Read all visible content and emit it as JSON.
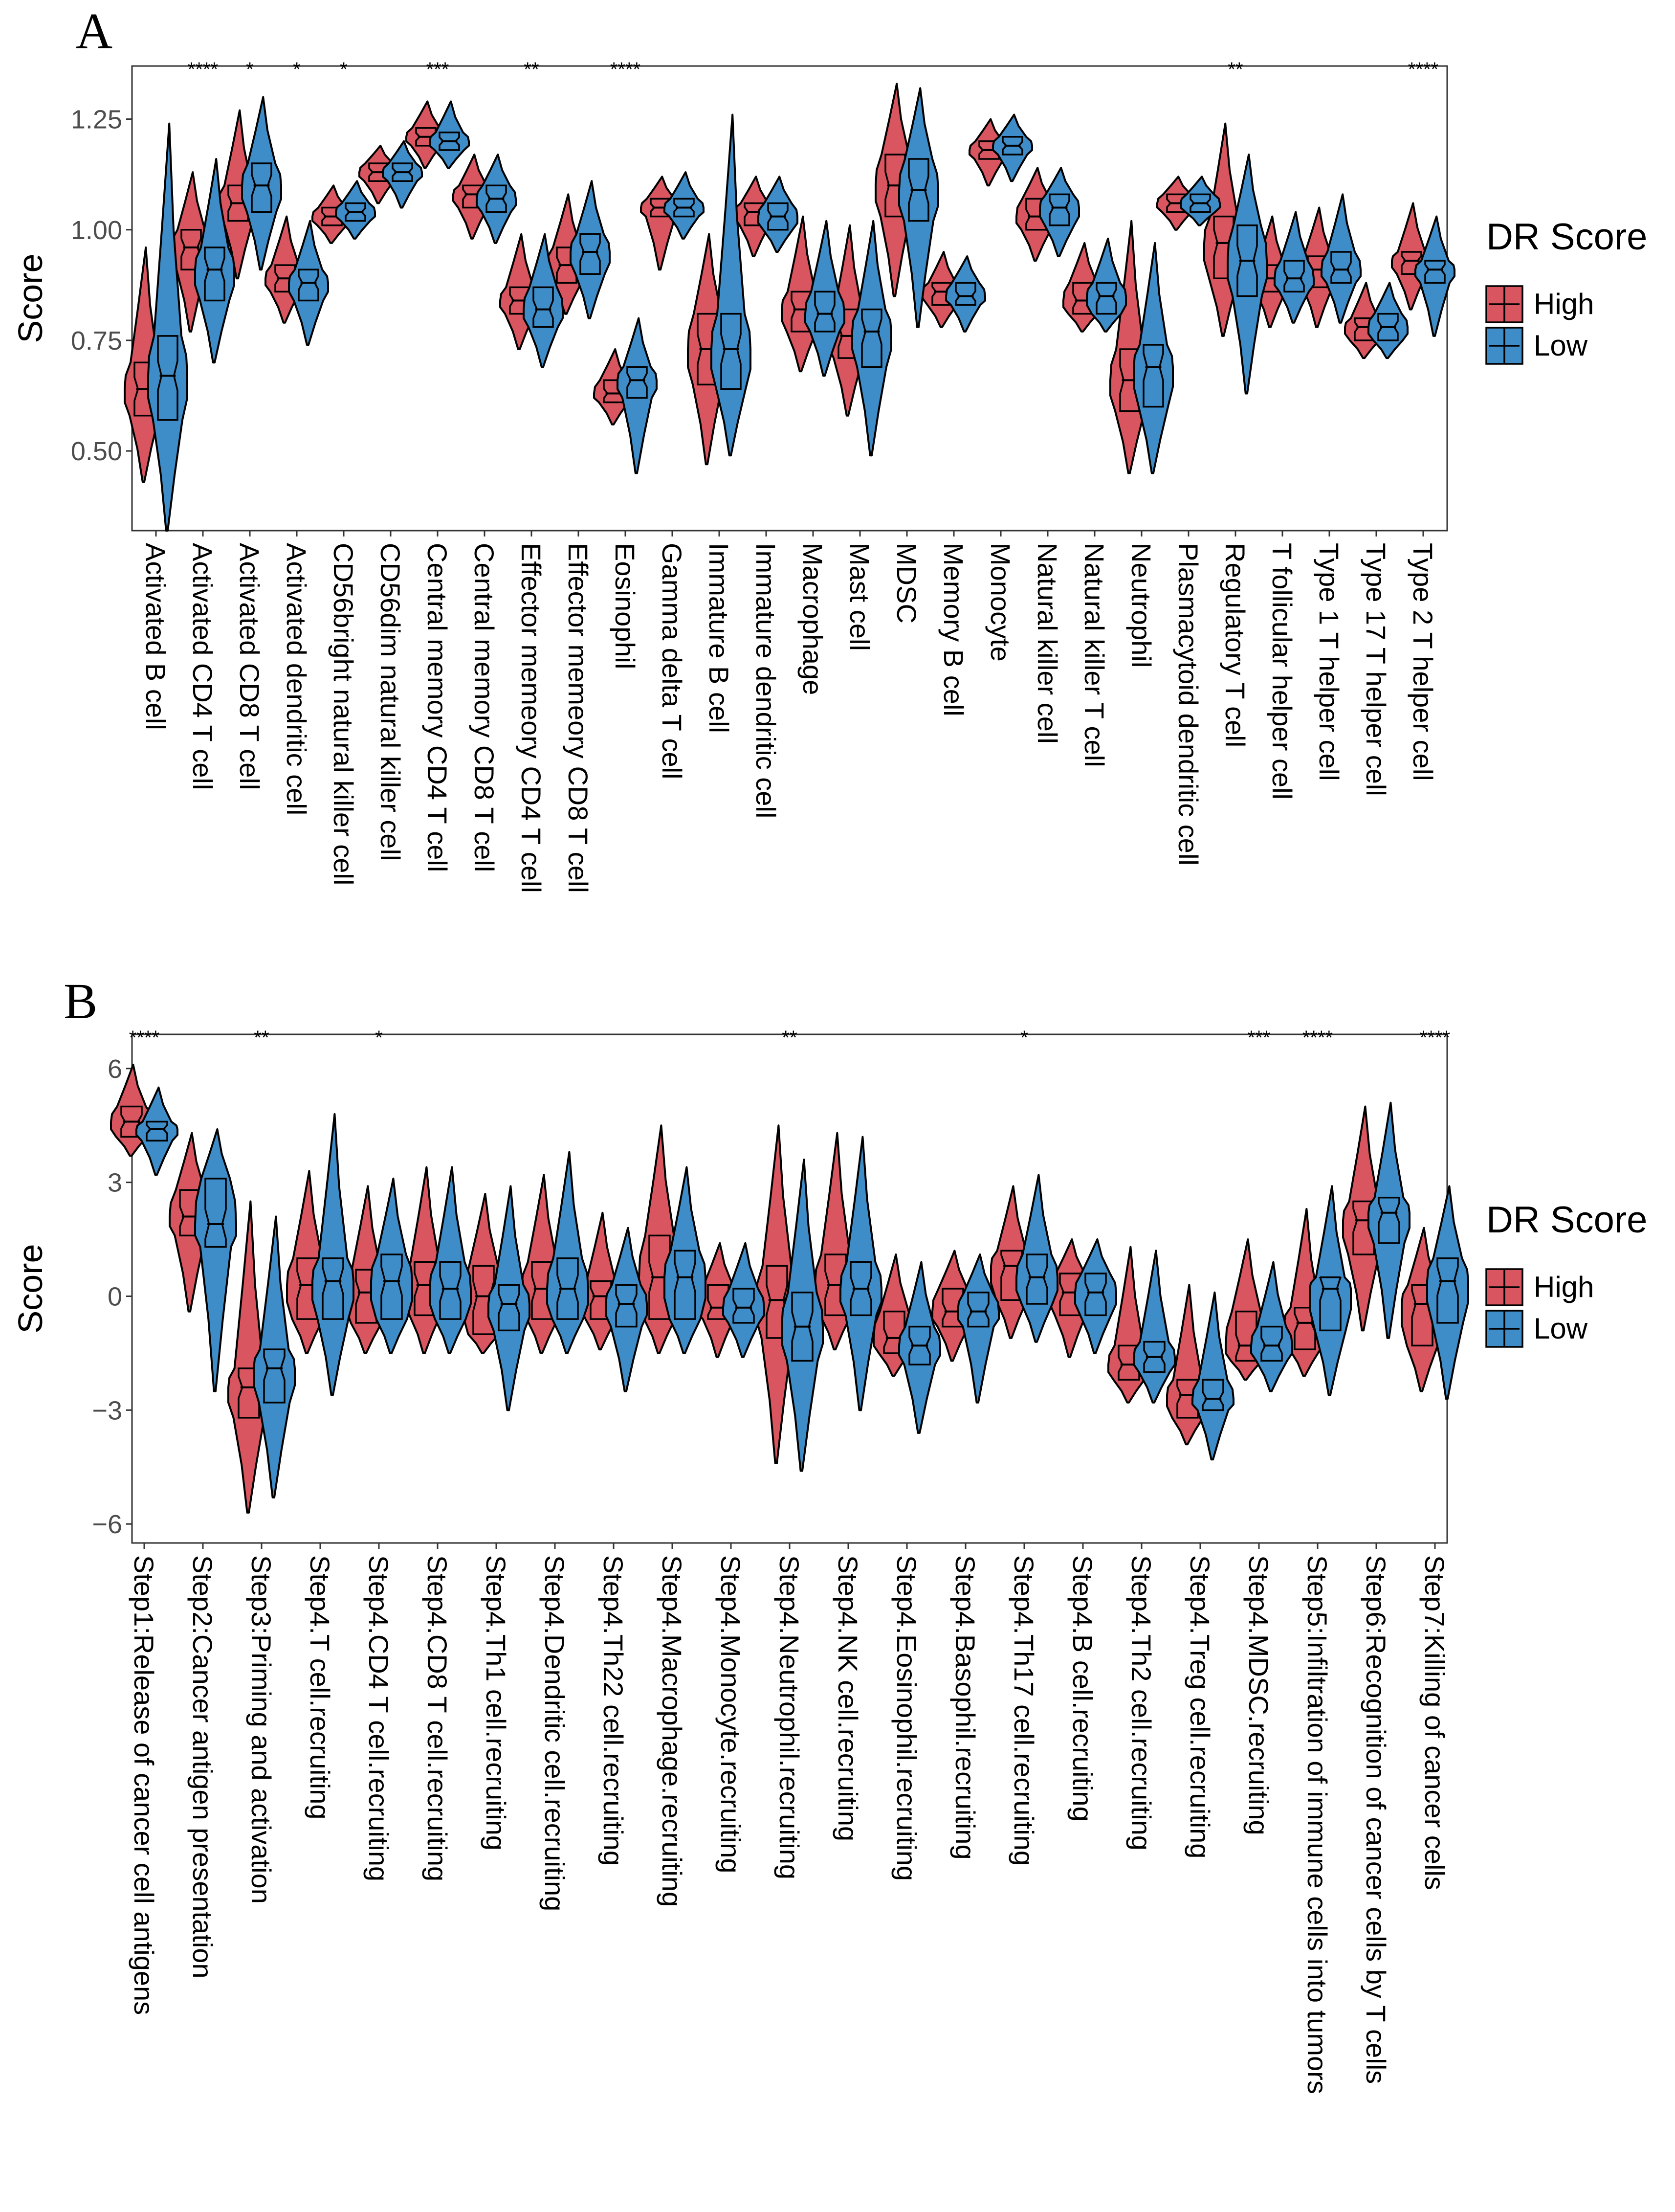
{
  "colors": {
    "high": "#d9555f",
    "low": "#3f8dc8",
    "outline": "#000000"
  },
  "legend": {
    "title": "DR Score",
    "items": [
      "High",
      "Low"
    ]
  },
  "chart_data": [
    {
      "panel": "A",
      "type": "violin+box",
      "title": "",
      "ylabel": "Score",
      "ylim": [
        0.32,
        1.37
      ],
      "yticks": [
        0.5,
        0.75,
        1.0,
        1.25
      ],
      "ytick_labels": [
        "0.50",
        "0.75",
        "1.00",
        "1.25"
      ],
      "categories": [
        "Activated B cell",
        "Activated CD4 T cell",
        "Activated CD8 T cell",
        "Activated dendritic cell",
        "CD56bright natural killer cell",
        "CD56dim natural killer cell",
        "Central memory CD4 T cell",
        "Central memory CD8 T cell",
        "Effector memeory CD4 T cell",
        "Effector memeory CD8 T cell",
        "Eosinophil",
        "Gamma delta T cell",
        "Immature  B cell",
        "Immature dendritic cell",
        "Macrophage",
        "Mast cell",
        "MDSC",
        "Memory B cell",
        "Monocyte",
        "Natural killer cell",
        "Natural killer T cell",
        "Neutrophil",
        "Plasmacytoid dendritic cell",
        "Regulatory T cell",
        "T follicular helper cell",
        "Type 1 T helper cell",
        "Type 17 T helper cell",
        "Type 2 T helper cell"
      ],
      "significance": [
        "",
        "****",
        "*",
        "*",
        "*",
        "",
        "***",
        "",
        "**",
        "",
        "****",
        "",
        "",
        "",
        "",
        "",
        "",
        "",
        "",
        "",
        "",
        "",
        "",
        "**",
        "",
        "",
        "",
        "****"
      ],
      "series": [
        {
          "name": "High",
          "stats": [
            [
              0.43,
              0.58,
              0.64,
              0.7,
              0.96
            ],
            [
              0.77,
              0.91,
              0.96,
              1.0,
              1.13
            ],
            [
              0.89,
              1.02,
              1.06,
              1.1,
              1.27
            ],
            [
              0.79,
              0.86,
              0.89,
              0.92,
              1.03
            ],
            [
              0.97,
              1.01,
              1.03,
              1.05,
              1.1
            ],
            [
              1.06,
              1.11,
              1.13,
              1.15,
              1.19
            ],
            [
              1.14,
              1.19,
              1.21,
              1.23,
              1.29
            ],
            [
              0.98,
              1.05,
              1.08,
              1.1,
              1.17
            ],
            [
              0.73,
              0.81,
              0.84,
              0.87,
              0.99
            ],
            [
              0.81,
              0.88,
              0.92,
              0.96,
              1.08
            ],
            [
              0.56,
              0.61,
              0.63,
              0.66,
              0.73
            ],
            [
              0.91,
              1.03,
              1.05,
              1.07,
              1.12
            ],
            [
              0.47,
              0.65,
              0.73,
              0.81,
              0.99
            ],
            [
              0.94,
              1.01,
              1.04,
              1.06,
              1.12
            ],
            [
              0.68,
              0.77,
              0.82,
              0.86,
              1.03
            ],
            [
              0.58,
              0.71,
              0.76,
              0.82,
              1.01
            ],
            [
              0.85,
              1.03,
              1.1,
              1.17,
              1.33
            ],
            [
              0.78,
              0.83,
              0.86,
              0.88,
              0.95
            ],
            [
              1.1,
              1.16,
              1.18,
              1.2,
              1.25
            ],
            [
              0.93,
              1.0,
              1.03,
              1.07,
              1.14
            ],
            [
              0.77,
              0.81,
              0.84,
              0.88,
              0.97
            ],
            [
              0.45,
              0.59,
              0.66,
              0.73,
              1.02
            ],
            [
              1.0,
              1.04,
              1.06,
              1.08,
              1.12
            ],
            [
              0.76,
              0.89,
              0.97,
              1.03,
              1.24
            ],
            [
              0.78,
              0.86,
              0.89,
              0.92,
              1.03
            ],
            [
              0.78,
              0.87,
              0.91,
              0.94,
              1.05
            ],
            [
              0.71,
              0.75,
              0.78,
              0.8,
              0.88
            ],
            [
              0.82,
              0.9,
              0.93,
              0.95,
              1.06
            ]
          ]
        },
        {
          "name": "Low",
          "stats": [
            [
              0.32,
              0.57,
              0.67,
              0.76,
              1.24
            ],
            [
              0.7,
              0.84,
              0.91,
              0.96,
              1.16
            ],
            [
              0.91,
              1.04,
              1.1,
              1.15,
              1.3
            ],
            [
              0.74,
              0.84,
              0.88,
              0.91,
              1.02
            ],
            [
              0.98,
              1.02,
              1.04,
              1.06,
              1.11
            ],
            [
              1.05,
              1.11,
              1.13,
              1.15,
              1.2
            ],
            [
              1.14,
              1.18,
              1.2,
              1.22,
              1.29
            ],
            [
              0.97,
              1.04,
              1.07,
              1.1,
              1.17
            ],
            [
              0.69,
              0.78,
              0.82,
              0.87,
              0.99
            ],
            [
              0.8,
              0.9,
              0.95,
              0.99,
              1.11
            ],
            [
              0.45,
              0.62,
              0.66,
              0.69,
              0.8
            ],
            [
              0.98,
              1.03,
              1.05,
              1.07,
              1.13
            ],
            [
              0.49,
              0.64,
              0.73,
              0.81,
              1.26
            ],
            [
              0.95,
              1.0,
              1.03,
              1.06,
              1.12
            ],
            [
              0.67,
              0.77,
              0.81,
              0.86,
              1.02
            ],
            [
              0.49,
              0.69,
              0.77,
              0.82,
              1.02
            ],
            [
              0.78,
              1.02,
              1.09,
              1.16,
              1.32
            ],
            [
              0.77,
              0.83,
              0.85,
              0.88,
              0.94
            ],
            [
              1.11,
              1.17,
              1.19,
              1.21,
              1.26
            ],
            [
              0.94,
              1.01,
              1.05,
              1.08,
              1.14
            ],
            [
              0.77,
              0.81,
              0.85,
              0.88,
              0.98
            ],
            [
              0.45,
              0.6,
              0.69,
              0.74,
              0.97
            ],
            [
              1.01,
              1.04,
              1.06,
              1.08,
              1.12
            ],
            [
              0.63,
              0.85,
              0.93,
              1.01,
              1.17
            ],
            [
              0.79,
              0.86,
              0.89,
              0.93,
              1.04
            ],
            [
              0.79,
              0.88,
              0.91,
              0.95,
              1.08
            ],
            [
              0.71,
              0.75,
              0.78,
              0.81,
              0.88
            ],
            [
              0.76,
              0.88,
              0.91,
              0.93,
              1.03
            ]
          ]
        }
      ]
    },
    {
      "panel": "B",
      "type": "violin+box",
      "title": "",
      "ylabel": "Score",
      "ylim": [
        -6.5,
        6.9
      ],
      "yticks": [
        -6,
        -3,
        0,
        3,
        6
      ],
      "ytick_labels": [
        "−6",
        "−3",
        "0",
        "3",
        "6"
      ],
      "categories": [
        "Step1:Release of cancer cell antigens",
        "Step2:Cancer antigen presentation",
        "Step3:Priming and activation",
        "Step4.T cell.recruiting",
        "Step4.CD4 T cell.recruiting",
        "Step4.CD8 T cell.recruiting",
        "Step4.Th1 cell.recruiting",
        "Step4.Dendritic cell.recruiting",
        "Step4.Th22 cell.recruiting",
        "Step4.Macrophage.recruiting",
        "Step4.Monocyte.recruiting",
        "Step4.Neutrophil.recruiting",
        "Step4.NK cell.recruiting",
        "Step4.Eosinophil.recruiting",
        "Step4.Basophil.recruiting",
        "Step4.Th17 cell.recruiting",
        "Step4.B cell.recruiting",
        "Step4.Th2 cell.recruiting",
        "Step4.Treg cell.recruiting",
        "Step4.MDSC.recruiting",
        "Step5:Infiltration of immune cells into tumors",
        "Step6:Recognition of cancer cells by T cells",
        "Step7:Killing of cancer cells"
      ],
      "significance": [
        "****",
        "",
        "**",
        "",
        "*",
        "",
        "",
        "",
        "",
        "",
        "",
        "**",
        "",
        "",
        "",
        "*",
        "",
        "",
        "",
        "***",
        "****",
        "",
        "****"
      ],
      "series": [
        {
          "name": "High",
          "stats": [
            [
              3.7,
              4.2,
              4.6,
              5.0,
              6.1
            ],
            [
              -0.4,
              1.6,
              2.1,
              2.8,
              4.3
            ],
            [
              -5.7,
              -3.2,
              -2.4,
              -1.9,
              2.5
            ],
            [
              -1.5,
              -0.6,
              0.3,
              1.0,
              3.3
            ],
            [
              -1.5,
              -0.7,
              0.1,
              0.7,
              2.9
            ],
            [
              -1.5,
              -0.5,
              0.3,
              0.9,
              3.4
            ],
            [
              -1.5,
              -1.0,
              0.0,
              0.8,
              2.7
            ],
            [
              -1.5,
              -0.6,
              0.2,
              0.9,
              3.2
            ],
            [
              -1.4,
              -0.6,
              0.0,
              0.4,
              2.2
            ],
            [
              -1.5,
              -0.6,
              0.5,
              1.6,
              4.5
            ],
            [
              -1.6,
              -0.6,
              -0.3,
              0.3,
              1.4
            ],
            [
              -4.4,
              -1.1,
              -0.1,
              0.8,
              4.5
            ],
            [
              -1.4,
              -0.5,
              0.3,
              1.1,
              4.3
            ],
            [
              -2.1,
              -1.5,
              -1.1,
              -0.4,
              1.1
            ],
            [
              -1.7,
              -0.8,
              -0.4,
              0.2,
              1.2
            ],
            [
              -1.1,
              -0.1,
              0.8,
              1.2,
              2.9
            ],
            [
              -1.6,
              -0.5,
              0.1,
              0.6,
              1.5
            ],
            [
              -2.8,
              -2.2,
              -1.8,
              -1.3,
              1.3
            ],
            [
              -3.9,
              -3.2,
              -2.6,
              -2.2,
              0.3
            ],
            [
              -2.2,
              -1.7,
              -1.3,
              -0.4,
              1.5
            ],
            [
              -2.1,
              -1.4,
              -0.7,
              -0.3,
              2.3
            ],
            [
              -0.9,
              1.1,
              2.0,
              2.5,
              5.0
            ],
            [
              -2.5,
              -1.3,
              -0.2,
              0.3,
              1.8
            ]
          ]
        },
        {
          "name": "Low",
          "stats": [
            [
              3.2,
              4.1,
              4.4,
              4.6,
              5.5
            ],
            [
              -2.5,
              1.3,
              1.9,
              3.1,
              4.4
            ],
            [
              -5.3,
              -2.8,
              -1.9,
              -1.4,
              2.1
            ],
            [
              -2.6,
              -0.6,
              0.4,
              1.0,
              4.8
            ],
            [
              -1.5,
              -0.6,
              0.4,
              1.1,
              3.1
            ],
            [
              -1.5,
              -0.6,
              0.2,
              0.9,
              3.4
            ],
            [
              -3.0,
              -0.9,
              -0.2,
              0.3,
              2.9
            ],
            [
              -1.5,
              -0.6,
              0.2,
              1.0,
              3.8
            ],
            [
              -2.5,
              -0.8,
              -0.2,
              0.3,
              1.8
            ],
            [
              -1.5,
              -0.6,
              0.5,
              1.2,
              3.4
            ],
            [
              -1.6,
              -0.7,
              -0.3,
              0.2,
              1.4
            ],
            [
              -4.6,
              -1.7,
              -0.8,
              0.1,
              3.6
            ],
            [
              -3.0,
              -0.5,
              0.2,
              0.9,
              4.2
            ],
            [
              -3.6,
              -1.8,
              -1.3,
              -0.8,
              0.9
            ],
            [
              -2.8,
              -0.8,
              -0.4,
              0.1,
              1.1
            ],
            [
              -1.2,
              -0.2,
              0.5,
              1.1,
              3.2
            ],
            [
              -1.5,
              -0.5,
              0.1,
              0.6,
              1.5
            ],
            [
              -2.8,
              -2.0,
              -1.6,
              -1.2,
              1.2
            ],
            [
              -4.3,
              -3.0,
              -2.7,
              -2.2,
              0.1
            ],
            [
              -2.5,
              -1.7,
              -1.3,
              -0.8,
              0.9
            ],
            [
              -2.6,
              -0.9,
              0.2,
              0.5,
              2.9
            ],
            [
              -1.1,
              1.4,
              2.2,
              2.6,
              5.1
            ],
            [
              -2.7,
              -0.7,
              0.4,
              1.0,
              2.9
            ]
          ]
        }
      ]
    }
  ]
}
